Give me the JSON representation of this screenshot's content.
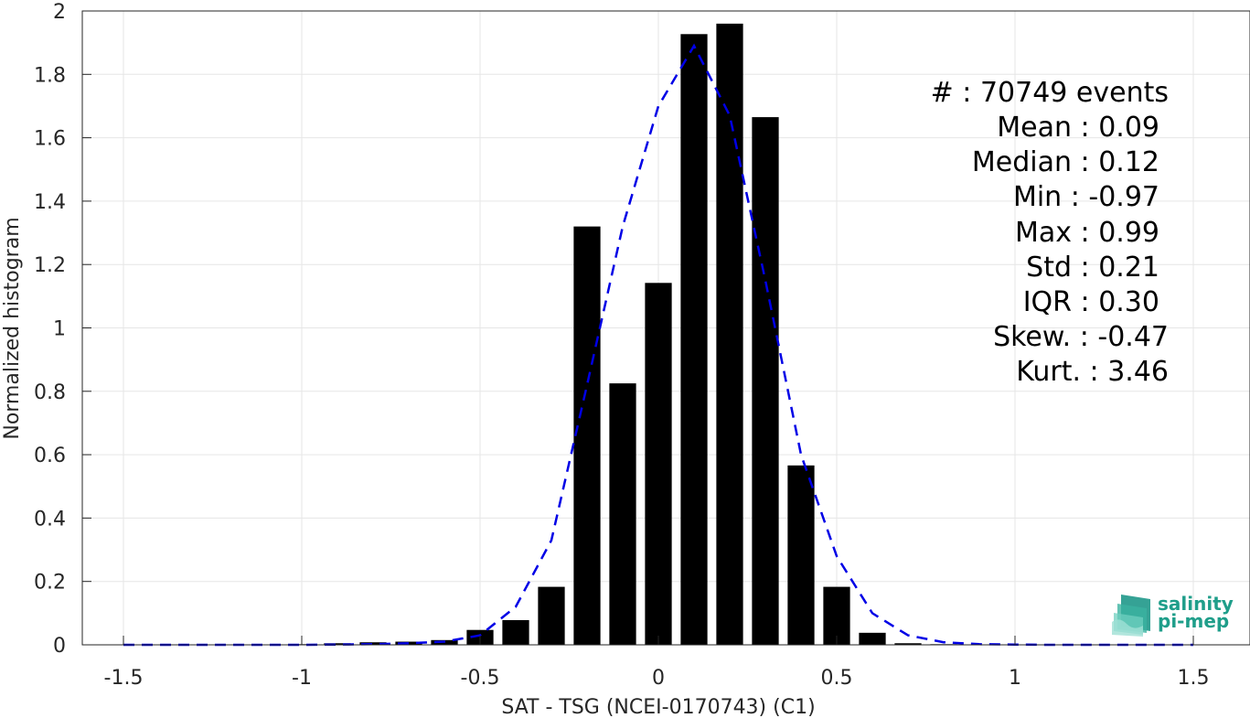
{
  "chart_data": {
    "type": "bar",
    "xlabel": "SAT - TSG (NCEI-0170743) (C1)",
    "ylabel": "Normalized histogram",
    "xlim": [
      -1.6,
      1.6
    ],
    "ylim": [
      0,
      2
    ],
    "xticks": [
      -1.5,
      -1,
      -0.5,
      0,
      0.5,
      1,
      1.5
    ],
    "xtick_labels": [
      "-1.5",
      "-1",
      "-0.5",
      "0",
      "0.5",
      "1",
      "1.5"
    ],
    "yticks": [
      0,
      0.2,
      0.4,
      0.6,
      0.8,
      1,
      1.2,
      1.4,
      1.6,
      1.8,
      2
    ],
    "ytick_labels": [
      "0",
      "0.2",
      "0.4",
      "0.6",
      "0.8",
      "1",
      "1.2",
      "1.4",
      "1.6",
      "1.8",
      "2"
    ],
    "grid": true,
    "bar_width": 0.075,
    "bar_color": "#000000",
    "bars": {
      "x": [
        -1.0,
        -0.9,
        -0.8,
        -0.7,
        -0.6,
        -0.5,
        -0.4,
        -0.3,
        -0.2,
        -0.1,
        0.0,
        0.1,
        0.2,
        0.3,
        0.4,
        0.5,
        0.6,
        0.7,
        0.8,
        0.9
      ],
      "values": [
        0.002,
        0.005,
        0.008,
        0.01,
        0.015,
        0.047,
        0.078,
        0.183,
        1.32,
        0.825,
        1.142,
        1.927,
        1.96,
        1.665,
        0.566,
        0.183,
        0.038,
        0.005,
        0.002,
        0.001
      ]
    },
    "fit_line": {
      "style": "dashed",
      "color": "#0000e6",
      "x": [
        -1.5,
        -1.4,
        -1.3,
        -1.2,
        -1.1,
        -1.0,
        -0.9,
        -0.8,
        -0.7,
        -0.6,
        -0.5,
        -0.4,
        -0.3,
        -0.2,
        -0.1,
        0.0,
        0.1,
        0.2,
        0.3,
        0.4,
        0.5,
        0.6,
        0.7,
        0.8,
        0.9,
        1.0,
        1.1,
        1.2,
        1.3,
        1.4,
        1.5
      ],
      "y": [
        0,
        0,
        0,
        0,
        0,
        0,
        0.001,
        0.002,
        0.005,
        0.01,
        0.03,
        0.12,
        0.33,
        0.82,
        1.32,
        1.7,
        1.89,
        1.67,
        1.15,
        0.6,
        0.28,
        0.1,
        0.03,
        0.008,
        0.002,
        0.001,
        0,
        0,
        0,
        0,
        0
      ]
    },
    "stats": [
      "#  : 70749 events",
      "Mean : 0.09",
      "Median : 0.12",
      "Min : -0.97",
      "Max : 0.99",
      "Std : 0.21",
      "IQR : 0.30",
      "Skew. : -0.47",
      "Kurt. : 3.46"
    ]
  },
  "logo": {
    "line1": "salinity",
    "line2": "pi-mep",
    "color": "#1f9e8a"
  }
}
